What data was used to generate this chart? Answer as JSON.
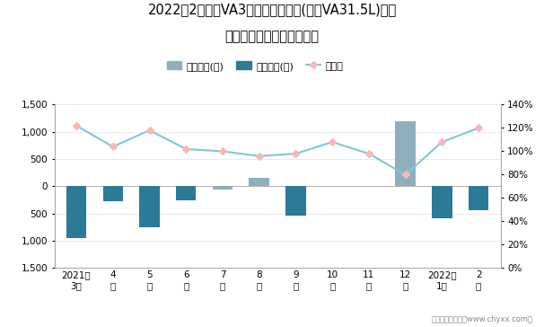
{
  "title_line1": "2022年2月捷达VA3旗下最畅销轿车(捷达VA31.5L)近一",
  "title_line2": "年库存情况及产销率统计图",
  "months": [
    "2021年\n3月",
    "4\n月",
    "5\n月",
    "6\n月",
    "7\n月",
    "8\n月",
    "9\n月",
    "10\n月",
    "11\n月",
    "12\n月",
    "2022年\n1月",
    "2\n月"
  ],
  "jinya_values": [
    0,
    0,
    0,
    0,
    -50,
    150,
    0,
    0,
    0,
    1200,
    0,
    0
  ],
  "qingcang_values": [
    -950,
    -280,
    -750,
    -250,
    0,
    0,
    -530,
    0,
    0,
    0,
    -580,
    -430
  ],
  "production_rate": [
    1.22,
    1.04,
    1.18,
    1.02,
    1.0,
    0.96,
    0.98,
    1.08,
    0.98,
    0.8,
    1.08,
    1.2
  ],
  "bar_color_jinya": "#8FAFBF",
  "bar_color_qingcang": "#2B7A96",
  "line_color": "#7EC8D8",
  "marker_facecolor": "#F5B8B8",
  "marker_edgecolor": "#F5B8B8",
  "ylim_left": [
    -1500,
    1500
  ],
  "ylim_right": [
    0,
    1.4
  ],
  "ylabel_right_ticks": [
    0.0,
    0.2,
    0.4,
    0.6,
    0.8,
    1.0,
    1.2,
    1.4
  ],
  "ylabel_left_ticks": [
    -1500,
    -1000,
    -500,
    0,
    500,
    1000,
    1500
  ],
  "legend_labels": [
    "积压库存(辆)",
    "清仓库存(辆)",
    "产销率"
  ],
  "footnote": "制图：智研咨询（www.chyxx.com）"
}
